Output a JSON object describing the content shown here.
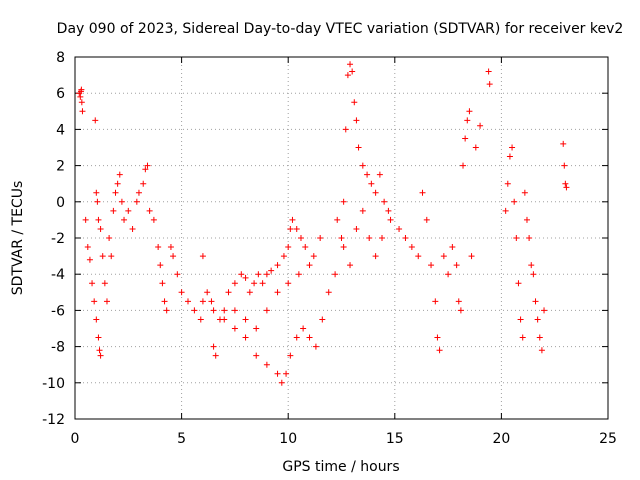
{
  "chart_data": {
    "type": "scatter",
    "title": "Day 090 of 2023, Sidereal Day-to-day VTEC variation (SDTVAR) for receiver kev2",
    "xlabel": "GPS time / hours",
    "ylabel": "SDTVAR / TECUs",
    "xlim": [
      0,
      25
    ],
    "ylim": [
      -12,
      8
    ],
    "xticks": [
      0,
      5,
      10,
      15,
      20,
      25
    ],
    "yticks": [
      -12,
      -10,
      -8,
      -6,
      -4,
      -2,
      0,
      2,
      4,
      6,
      8
    ],
    "grid": true,
    "marker": "+",
    "color": "#ff0000",
    "series": [
      {
        "name": "SDTVAR",
        "points": [
          [
            0.2,
            6.0
          ],
          [
            0.25,
            5.8
          ],
          [
            0.3,
            6.2
          ],
          [
            0.32,
            5.5
          ],
          [
            0.28,
            6.1
          ],
          [
            0.35,
            5.0
          ],
          [
            0.5,
            -1.0
          ],
          [
            0.6,
            -2.5
          ],
          [
            0.7,
            -3.2
          ],
          [
            0.8,
            -4.5
          ],
          [
            0.9,
            -5.5
          ],
          [
            1.0,
            -6.5
          ],
          [
            1.1,
            -7.5
          ],
          [
            1.15,
            -8.2
          ],
          [
            1.2,
            -8.5
          ],
          [
            0.95,
            4.5
          ],
          [
            1.0,
            0.5
          ],
          [
            1.05,
            0.0
          ],
          [
            1.1,
            -1.0
          ],
          [
            1.2,
            -1.5
          ],
          [
            1.3,
            -3.0
          ],
          [
            1.4,
            -4.5
          ],
          [
            1.5,
            -5.5
          ],
          [
            1.6,
            -2.0
          ],
          [
            1.7,
            -3.0
          ],
          [
            1.8,
            -0.5
          ],
          [
            1.9,
            0.5
          ],
          [
            2.0,
            1.0
          ],
          [
            2.1,
            1.5
          ],
          [
            2.2,
            0.0
          ],
          [
            2.3,
            -1.0
          ],
          [
            2.5,
            -0.5
          ],
          [
            2.7,
            -1.5
          ],
          [
            2.9,
            0.0
          ],
          [
            3.0,
            0.5
          ],
          [
            3.2,
            1.0
          ],
          [
            3.3,
            1.8
          ],
          [
            3.4,
            2.0
          ],
          [
            3.5,
            -0.5
          ],
          [
            3.7,
            -1.0
          ],
          [
            3.9,
            -2.5
          ],
          [
            4.0,
            -3.5
          ],
          [
            4.1,
            -4.5
          ],
          [
            4.2,
            -5.5
          ],
          [
            4.3,
            -6.0
          ],
          [
            4.5,
            -2.5
          ],
          [
            4.6,
            -3.0
          ],
          [
            4.8,
            -4.0
          ],
          [
            5.0,
            -5.0
          ],
          [
            5.3,
            -5.5
          ],
          [
            5.6,
            -6.0
          ],
          [
            5.9,
            -6.5
          ],
          [
            6.0,
            -3.0
          ],
          [
            6.2,
            -5.0
          ],
          [
            6.4,
            -5.5
          ],
          [
            6.5,
            -8.0
          ],
          [
            6.6,
            -8.5
          ],
          [
            6.8,
            -6.5
          ],
          [
            7.0,
            -6.0
          ],
          [
            7.2,
            -5.0
          ],
          [
            7.5,
            -4.5
          ],
          [
            7.8,
            -4.0
          ],
          [
            8.0,
            -4.2
          ],
          [
            8.2,
            -5.0
          ],
          [
            8.4,
            -4.5
          ],
          [
            8.6,
            -4.0
          ],
          [
            8.8,
            -4.5
          ],
          [
            9.0,
            -4.0
          ],
          [
            9.2,
            -3.8
          ],
          [
            9.5,
            -3.5
          ],
          [
            9.8,
            -3.0
          ],
          [
            10.0,
            -2.5
          ],
          [
            10.1,
            -1.5
          ],
          [
            10.2,
            -1.0
          ],
          [
            10.4,
            -1.5
          ],
          [
            10.6,
            -2.0
          ],
          [
            10.8,
            -2.5
          ],
          [
            6.0,
            -5.5
          ],
          [
            6.5,
            -6.0
          ],
          [
            7.0,
            -6.5
          ],
          [
            7.5,
            -6.0
          ],
          [
            8.0,
            -6.5
          ],
          [
            8.5,
            -7.0
          ],
          [
            9.0,
            -6.0
          ],
          [
            9.5,
            -5.0
          ],
          [
            10.0,
            -4.5
          ],
          [
            10.5,
            -4.0
          ],
          [
            11.0,
            -3.5
          ],
          [
            11.2,
            -3.0
          ],
          [
            11.5,
            -2.0
          ],
          [
            7.5,
            -7.0
          ],
          [
            8.0,
            -7.5
          ],
          [
            8.5,
            -8.5
          ],
          [
            9.0,
            -9.0
          ],
          [
            9.5,
            -9.5
          ],
          [
            9.7,
            -10.0
          ],
          [
            9.9,
            -9.5
          ],
          [
            10.1,
            -8.5
          ],
          [
            10.4,
            -7.5
          ],
          [
            10.7,
            -7.0
          ],
          [
            11.0,
            -7.5
          ],
          [
            11.3,
            -8.0
          ],
          [
            11.6,
            -6.5
          ],
          [
            11.9,
            -5.0
          ],
          [
            12.2,
            -4.0
          ],
          [
            12.5,
            -2.0
          ],
          [
            12.6,
            0.0
          ],
          [
            12.7,
            4.0
          ],
          [
            12.8,
            7.0
          ],
          [
            12.9,
            7.6
          ],
          [
            13.0,
            7.2
          ],
          [
            13.1,
            5.5
          ],
          [
            13.2,
            4.5
          ],
          [
            13.3,
            3.0
          ],
          [
            13.5,
            2.0
          ],
          [
            13.7,
            1.5
          ],
          [
            13.9,
            1.0
          ],
          [
            14.1,
            0.5
          ],
          [
            14.3,
            1.5
          ],
          [
            14.5,
            0.0
          ],
          [
            14.7,
            -0.5
          ],
          [
            12.3,
            -1.0
          ],
          [
            12.6,
            -2.5
          ],
          [
            12.9,
            -3.5
          ],
          [
            13.2,
            -1.5
          ],
          [
            13.5,
            -0.5
          ],
          [
            13.8,
            -2.0
          ],
          [
            14.1,
            -3.0
          ],
          [
            14.4,
            -2.0
          ],
          [
            14.8,
            -1.0
          ],
          [
            15.2,
            -1.5
          ],
          [
            15.5,
            -2.0
          ],
          [
            15.8,
            -2.5
          ],
          [
            16.1,
            -3.0
          ],
          [
            16.3,
            0.5
          ],
          [
            16.5,
            -1.0
          ],
          [
            16.7,
            -3.5
          ],
          [
            16.9,
            -5.5
          ],
          [
            17.0,
            -7.5
          ],
          [
            17.1,
            -8.2
          ],
          [
            17.3,
            -3.0
          ],
          [
            17.5,
            -4.0
          ],
          [
            17.7,
            -2.5
          ],
          [
            17.9,
            -3.5
          ],
          [
            18.0,
            -5.5
          ],
          [
            18.1,
            -6.0
          ],
          [
            18.2,
            2.0
          ],
          [
            18.3,
            3.5
          ],
          [
            18.4,
            4.5
          ],
          [
            18.5,
            5.0
          ],
          [
            18.6,
            -3.0
          ],
          [
            18.8,
            3.0
          ],
          [
            19.0,
            4.2
          ],
          [
            19.4,
            7.2
          ],
          [
            19.45,
            6.5
          ],
          [
            20.2,
            -0.5
          ],
          [
            20.3,
            1.0
          ],
          [
            20.4,
            2.5
          ],
          [
            20.5,
            3.0
          ],
          [
            20.6,
            0.0
          ],
          [
            20.7,
            -2.0
          ],
          [
            20.8,
            -4.5
          ],
          [
            20.9,
            -6.5
          ],
          [
            21.0,
            -7.5
          ],
          [
            21.1,
            0.5
          ],
          [
            21.2,
            -1.0
          ],
          [
            21.3,
            -2.0
          ],
          [
            21.4,
            -3.5
          ],
          [
            21.5,
            -4.0
          ],
          [
            21.6,
            -5.5
          ],
          [
            21.7,
            -6.5
          ],
          [
            21.8,
            -7.5
          ],
          [
            21.9,
            -8.2
          ],
          [
            22.0,
            -6.0
          ],
          [
            22.9,
            3.2
          ],
          [
            22.95,
            2.0
          ],
          [
            23.0,
            1.0
          ],
          [
            23.05,
            0.8
          ]
        ]
      }
    ]
  }
}
